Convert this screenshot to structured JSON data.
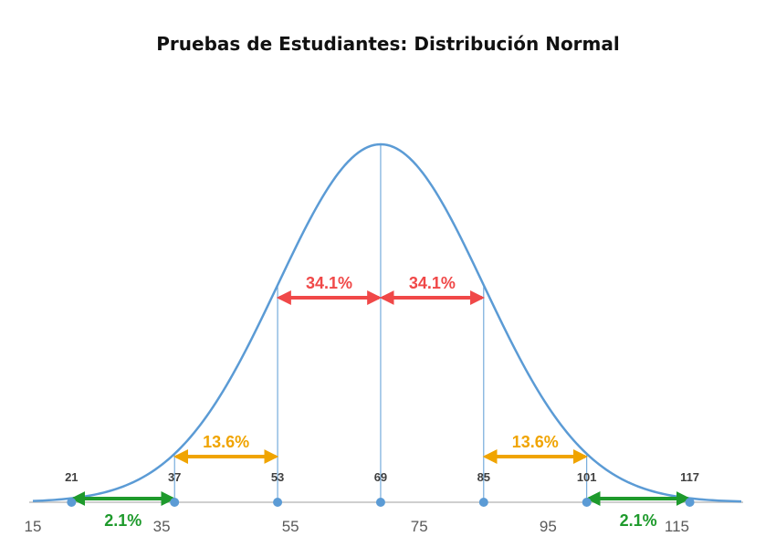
{
  "chart_data": {
    "type": "line",
    "title": "Pruebas de Estudiantes: Distribución Normal",
    "mean": 69,
    "std_dev": 16,
    "xlim": [
      15,
      125
    ],
    "x_ticks": [
      15,
      35,
      55,
      75,
      95,
      115
    ],
    "marked_points": [
      21,
      37,
      53,
      69,
      85,
      101,
      117
    ],
    "grid": false,
    "series": [
      {
        "values": []
      }
    ],
    "annotations": [
      {
        "label": "2.1%",
        "from": 21,
        "to": 37,
        "level": "axis",
        "color": "#1e9a2c",
        "label_side": "below"
      },
      {
        "label": "13.6%",
        "from": 37,
        "to": 53,
        "level": "low",
        "color": "#f0a400",
        "label_side": "above"
      },
      {
        "label": "34.1%",
        "from": 53,
        "to": 69,
        "level": "high",
        "color": "#f04848",
        "label_side": "above"
      },
      {
        "label": "34.1%",
        "from": 69,
        "to": 85,
        "level": "high",
        "color": "#f04848",
        "label_side": "above"
      },
      {
        "label": "13.6%",
        "from": 85,
        "to": 101,
        "level": "low",
        "color": "#f0a400",
        "label_side": "above"
      },
      {
        "label": "2.1%",
        "from": 101,
        "to": 117,
        "level": "axis",
        "color": "#1e9a2c",
        "label_side": "below"
      }
    ],
    "colors": {
      "curve": "#5b9bd5",
      "axis": "#bfbfbf",
      "points": "#5b9bd5",
      "guides": "#5b9bd5"
    }
  }
}
